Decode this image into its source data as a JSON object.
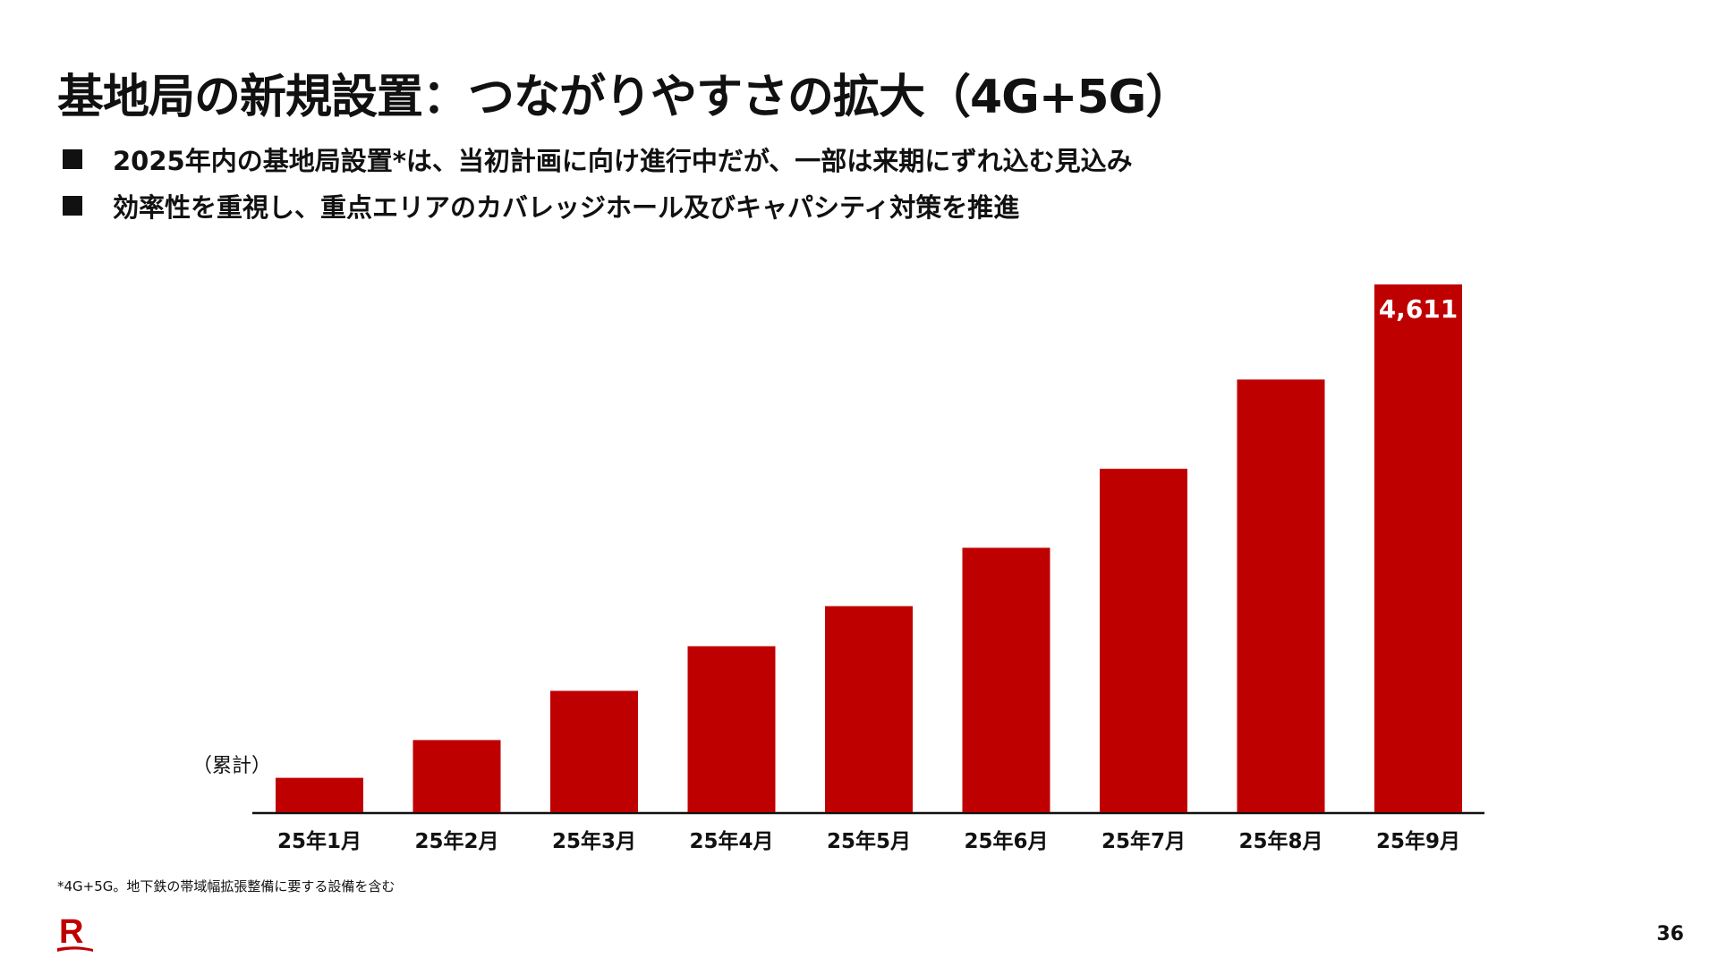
{
  "slide": {
    "title": "基地局の新規設置：つながりやすさの拡大（4G+5G）",
    "bullets": [
      "2025年内の基地局設置*は、当初計画に向け進行中だが、一部は来期にずれ込む見込み",
      "効率性を重視し、重点エリアのカバレッジホール及びキャパシティ対策を推進"
    ],
    "unit_label": "（累計）",
    "footnote": "*4G+5G。地下鉄の帯域幅拡張整備に要する設備を含む",
    "page_number": "36",
    "logo_letter": "R"
  },
  "colors": {
    "bar": "#BF0000",
    "text": "#111111",
    "bar_label": "#FFFFFF",
    "baseline": "#111111"
  },
  "chart_data": {
    "type": "bar",
    "categories": [
      "25年1月",
      "25年2月",
      "25年3月",
      "25年4月",
      "25年5月",
      "25年6月",
      "25年7月",
      "25年8月",
      "25年9月"
    ],
    "values": [
      300,
      630,
      1060,
      1450,
      1800,
      2310,
      3000,
      3780,
      4611
    ],
    "data_labels": [
      "",
      "",
      "",
      "",
      "",
      "",
      "",
      "",
      "4,611"
    ],
    "ylim": [
      0,
      4611
    ],
    "grid": false,
    "legend": "none"
  }
}
